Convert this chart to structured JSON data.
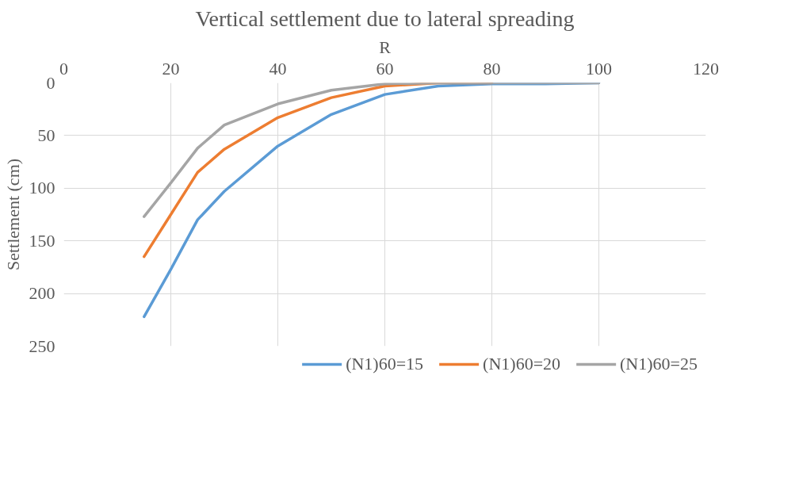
{
  "chart_data": {
    "type": "line",
    "title": "Vertical settlement due to lateral spreading",
    "xlabel": "R",
    "ylabel": "Settlement (cm)",
    "x": [
      15,
      20,
      25,
      30,
      40,
      50,
      60,
      70,
      80,
      90,
      100
    ],
    "series": [
      {
        "name": "(N1)60=15",
        "color": "#5b9bd5",
        "values": [
          222,
          177,
          130,
          103,
          60,
          30,
          11,
          3,
          1,
          1,
          0
        ]
      },
      {
        "name": "(N1)60=20",
        "color": "#ed7d31",
        "values": [
          165,
          125,
          85,
          63,
          33,
          14,
          3,
          0,
          0,
          null,
          null
        ]
      },
      {
        "name": "(N1)60=25",
        "color": "#a5a5a5",
        "values": [
          127,
          95,
          62,
          40,
          20,
          7,
          1,
          0,
          0,
          0,
          0
        ]
      }
    ],
    "xlim": [
      0,
      120
    ],
    "xticks": [
      0,
      20,
      40,
      60,
      80,
      100,
      120
    ],
    "ylim": [
      250,
      0
    ],
    "yticks": [
      0,
      50,
      100,
      150,
      200,
      250
    ],
    "grid": true,
    "legend": "bottom",
    "marker": "none",
    "line_style": "solid"
  }
}
